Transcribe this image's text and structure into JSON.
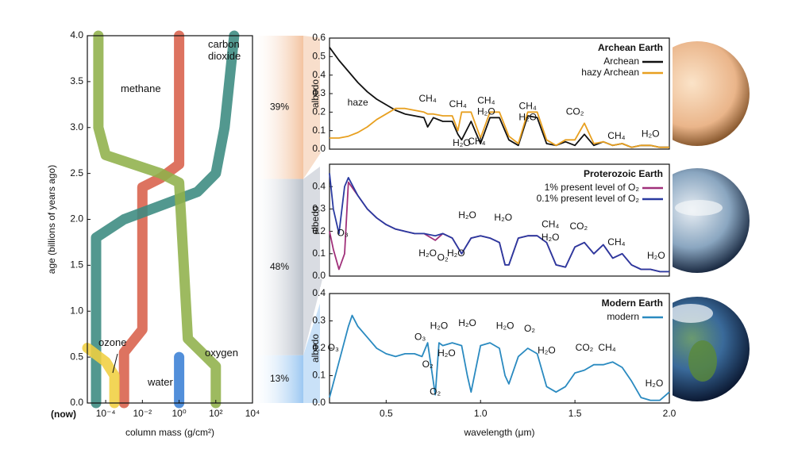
{
  "chart_data": [
    {
      "type": "line",
      "log_x": true,
      "ylabel": "age (billions of years ago)",
      "xlabel": "column mass (g/cm²)",
      "now_label": "(now)",
      "xlim": [
        1e-05,
        10000
      ],
      "xticks": [
        {
          "value": 0.0001,
          "label": "10⁻⁴"
        },
        {
          "value": 0.01,
          "label": "10⁻²"
        },
        {
          "value": 1,
          "label": "10⁰"
        },
        {
          "value": 100,
          "label": "10²"
        },
        {
          "value": 10000,
          "label": "10⁴"
        }
      ],
      "ylim": [
        0,
        4
      ],
      "yticks": [
        {
          "value": 0,
          "label": "0.0"
        },
        0.5,
        {
          "value": 1,
          "label": "1.0"
        },
        1.5,
        {
          "value": 2,
          "label": "2.0"
        },
        2.5,
        {
          "value": 3,
          "label": "3.0"
        },
        3.5,
        {
          "value": 4,
          "label": "4.0"
        }
      ],
      "series": [
        {
          "name": "methane",
          "color": "#d8604a",
          "x": [
            1,
            1,
            1,
            0.1,
            0.01,
            0.01,
            0.001,
            0.001
          ],
          "y": [
            4.0,
            3.0,
            2.6,
            2.45,
            2.35,
            0.8,
            0.55,
            0.0
          ]
        },
        {
          "name": "carbon dioxide",
          "color": "#3a8a80",
          "x": [
            1000,
            300,
            100,
            10,
            0.001,
            3e-05,
            3e-05
          ],
          "y": [
            4.0,
            3.0,
            2.5,
            2.3,
            2.0,
            1.8,
            0.0
          ]
        },
        {
          "name": "oxygen",
          "color": "#8fb04a",
          "x": [
            4e-05,
            4e-05,
            0.0001,
            0.1,
            1,
            3,
            100,
            100
          ],
          "y": [
            4.0,
            3.0,
            2.7,
            2.5,
            2.4,
            0.7,
            0.4,
            0.0
          ]
        },
        {
          "name": "ozone",
          "color": "#f0cf40",
          "x": [
            1e-05,
            0.0001,
            0.0003,
            0.0003
          ],
          "y": [
            0.6,
            0.45,
            0.3,
            0.0
          ]
        },
        {
          "name": "water",
          "color": "#3a7fd5",
          "x": [
            1,
            1
          ],
          "y": [
            0.5,
            0.0
          ]
        }
      ]
    },
    {
      "type": "share",
      "values": [
        39,
        48,
        13
      ],
      "value_labels": [
        "39%",
        "48%",
        "13%"
      ],
      "colors": [
        "#f3c3a0",
        "#b9c0ca",
        "#9cc8f2"
      ],
      "label_colors": [
        "#9c4a1c",
        "#333333",
        "#2a66cc"
      ]
    },
    {
      "type": "spectrum",
      "title": "Archean Earth",
      "ylabel": "albedo",
      "xlim": [
        0.2,
        2.0
      ],
      "ylim": [
        0,
        0.6
      ],
      "yticks": [
        {
          "value": 0,
          "label": "0.0"
        },
        0.1,
        0.2,
        0.3,
        0.4,
        0.5,
        0.6
      ],
      "x": [
        0.2,
        0.25,
        0.3,
        0.35,
        0.4,
        0.45,
        0.5,
        0.55,
        0.6,
        0.65,
        0.7,
        0.72,
        0.75,
        0.8,
        0.85,
        0.88,
        0.9,
        0.95,
        1.0,
        1.05,
        1.1,
        1.15,
        1.2,
        1.25,
        1.3,
        1.35,
        1.4,
        1.45,
        1.5,
        1.55,
        1.6,
        1.65,
        1.7,
        1.75,
        1.8,
        1.85,
        1.9,
        1.95,
        2.0
      ],
      "series": [
        {
          "name": "Archean",
          "color": "#111111",
          "values": [
            0.55,
            0.48,
            0.42,
            0.36,
            0.31,
            0.27,
            0.24,
            0.21,
            0.19,
            0.18,
            0.17,
            0.12,
            0.17,
            0.15,
            0.15,
            0.08,
            0.05,
            0.15,
            0.03,
            0.17,
            0.17,
            0.05,
            0.02,
            0.18,
            0.17,
            0.03,
            0.02,
            0.04,
            0.02,
            0.08,
            0.02,
            0.04,
            0.02,
            0.03,
            0.01,
            0.02,
            0.02,
            0.01,
            0.01
          ]
        },
        {
          "name": "hazy Archean",
          "color": "#e8a020",
          "values": [
            0.06,
            0.06,
            0.07,
            0.09,
            0.12,
            0.16,
            0.19,
            0.22,
            0.22,
            0.21,
            0.2,
            0.19,
            0.19,
            0.18,
            0.18,
            0.1,
            0.2,
            0.2,
            0.06,
            0.2,
            0.2,
            0.07,
            0.03,
            0.2,
            0.2,
            0.05,
            0.02,
            0.05,
            0.05,
            0.14,
            0.03,
            0.04,
            0.02,
            0.03,
            0.01,
            0.02,
            0.02,
            0.01,
            0.01
          ]
        }
      ],
      "annotations": [
        "haze",
        "CH₄",
        "CH₄",
        "CH₄",
        "H₂O",
        "CH₄",
        "H₂O",
        "CO₂",
        "H₂O",
        "CH₄",
        "CH₄",
        "H₂O"
      ]
    },
    {
      "type": "spectrum",
      "title": "Proterozoic Earth",
      "ylabel": "albedo",
      "xlim": [
        0.2,
        2.0
      ],
      "ylim": [
        0,
        0.5
      ],
      "yticks": [
        {
          "value": 0,
          "label": "0.0"
        },
        0.1,
        0.2,
        0.3,
        0.4
      ],
      "x": [
        0.2,
        0.22,
        0.25,
        0.28,
        0.3,
        0.35,
        0.4,
        0.45,
        0.5,
        0.55,
        0.6,
        0.65,
        0.7,
        0.76,
        0.8,
        0.85,
        0.9,
        0.95,
        1.0,
        1.05,
        1.1,
        1.13,
        1.15,
        1.2,
        1.25,
        1.3,
        1.35,
        1.4,
        1.45,
        1.5,
        1.55,
        1.6,
        1.65,
        1.7,
        1.75,
        1.8,
        1.85,
        1.9,
        1.95,
        2.0
      ],
      "series": [
        {
          "name": "1% present level of O₂",
          "color": "#a0307a",
          "values": [
            0.2,
            0.12,
            0.03,
            0.1,
            0.42,
            0.36,
            0.3,
            0.26,
            0.23,
            0.21,
            0.2,
            0.19,
            0.19,
            0.16,
            0.19,
            0.17,
            0.1,
            0.17,
            0.18,
            0.17,
            0.15,
            0.05,
            0.05,
            0.17,
            0.18,
            0.18,
            0.15,
            0.05,
            0.04,
            0.13,
            0.15,
            0.1,
            0.14,
            0.08,
            0.1,
            0.05,
            0.03,
            0.03,
            0.02,
            0.02
          ]
        },
        {
          "name": "0.1% present level of O₂",
          "color": "#2a3aa0",
          "values": [
            0.46,
            0.3,
            0.19,
            0.4,
            0.44,
            0.36,
            0.3,
            0.26,
            0.23,
            0.21,
            0.2,
            0.19,
            0.19,
            0.18,
            0.19,
            0.17,
            0.1,
            0.17,
            0.18,
            0.17,
            0.15,
            0.05,
            0.05,
            0.17,
            0.18,
            0.18,
            0.15,
            0.05,
            0.04,
            0.13,
            0.15,
            0.1,
            0.14,
            0.08,
            0.1,
            0.05,
            0.03,
            0.03,
            0.02,
            0.02
          ]
        }
      ],
      "annotations": [
        "O₃",
        "H₂O",
        "H₂O",
        "H₂O",
        "O₂",
        "H₂O",
        "CH₄",
        "H₂O",
        "CO₂",
        "CH₄",
        "H₂O"
      ]
    },
    {
      "type": "spectrum",
      "title": "Modern Earth",
      "ylabel": "albedo",
      "xlabel": "wavelength (μm)",
      "xlim": [
        0.2,
        2.0
      ],
      "ylim": [
        0,
        0.4
      ],
      "xticks": [
        0.5,
        {
          "value": 1,
          "label": "1.0"
        },
        1.5,
        {
          "value": 2,
          "label": "2.0"
        }
      ],
      "yticks": [
        {
          "value": 0,
          "label": "0.0"
        },
        0.1,
        0.2,
        0.3,
        0.4
      ],
      "x": [
        0.2,
        0.25,
        0.3,
        0.32,
        0.35,
        0.4,
        0.45,
        0.5,
        0.55,
        0.6,
        0.65,
        0.69,
        0.72,
        0.76,
        0.78,
        0.8,
        0.85,
        0.9,
        0.93,
        0.95,
        1.0,
        1.05,
        1.1,
        1.13,
        1.15,
        1.2,
        1.25,
        1.3,
        1.35,
        1.4,
        1.45,
        1.5,
        1.55,
        1.6,
        1.65,
        1.7,
        1.75,
        1.8,
        1.85,
        1.9,
        1.95,
        2.0
      ],
      "series": [
        {
          "name": "modern",
          "color": "#2a8ac0",
          "values": [
            0.02,
            0.15,
            0.28,
            0.32,
            0.28,
            0.24,
            0.2,
            0.18,
            0.17,
            0.18,
            0.18,
            0.17,
            0.22,
            0.03,
            0.22,
            0.21,
            0.22,
            0.21,
            0.1,
            0.04,
            0.21,
            0.22,
            0.2,
            0.1,
            0.07,
            0.17,
            0.2,
            0.18,
            0.06,
            0.04,
            0.06,
            0.11,
            0.12,
            0.14,
            0.14,
            0.15,
            0.13,
            0.08,
            0.02,
            0.01,
            0.01,
            0.04
          ]
        }
      ],
      "annotations": [
        "O₃",
        "O₃",
        "H₂O",
        "H₂O",
        "O₂",
        "H₂O",
        "O₂",
        "H₂O",
        "O₂",
        "H₂O",
        "CO₂",
        "CH₄",
        "H₂O"
      ]
    }
  ]
}
